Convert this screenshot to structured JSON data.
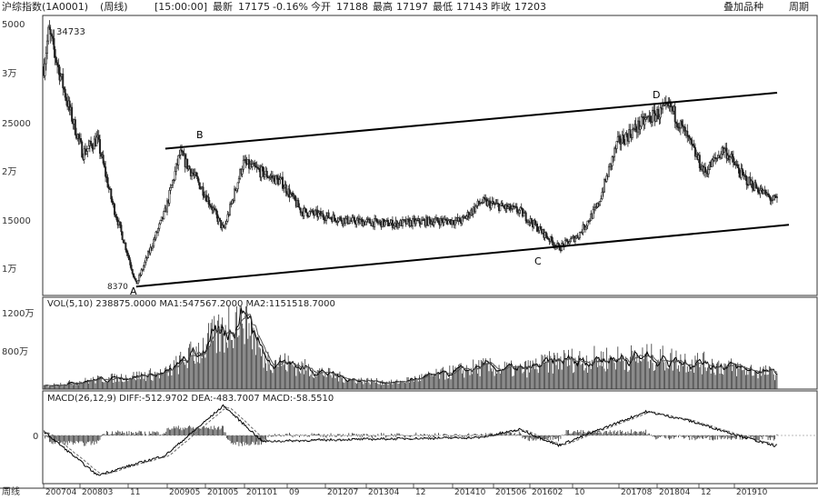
{
  "header": {
    "index_name": "沪综指数(1A0001)",
    "period": "(周线)",
    "time": "[15:00:00]",
    "latest_label": "最新",
    "latest": "17175",
    "change": "-0.16%",
    "open_label": "今开",
    "open": "17188",
    "high_label": "最高",
    "high": "17197",
    "low_label": "最低",
    "low": "17143",
    "close_label": "昨收",
    "close": "17203",
    "btn_overlay": "叠加品种",
    "btn_period": "周期"
  },
  "price_panel": {
    "y_ticks": [
      "5000",
      "3万",
      "25000",
      "2万",
      "15000",
      "1万"
    ],
    "peak_label": "34733",
    "trough_label": "8370",
    "points": [
      "A",
      "B",
      "C",
      "D"
    ]
  },
  "vol_panel": {
    "label": "VOL(5,10) 238875.0000 MA1:547567.2000 MA2:1151518.7000",
    "y_ticks": [
      "1200万",
      "800万"
    ]
  },
  "macd_panel": {
    "label": "MACD(26,12,9) DIFF:-512.9702 DEA:-483.7007 MACD:-58.5510",
    "y_ticks": [
      "0"
    ]
  },
  "x_axis": {
    "corner": "周线",
    "labels": [
      "200704",
      "200803",
      "11",
      "200905",
      "201005",
      "201101",
      "09",
      "201207",
      "201304",
      "12",
      "201410",
      "201506",
      "201602",
      "10",
      "201708",
      "201804",
      "12",
      "201910"
    ]
  },
  "chart_data": {
    "type": "candlestick",
    "title": "",
    "x_labels": [
      "200704",
      "200803",
      "11",
      "200905",
      "201005",
      "201101",
      "09",
      "201207",
      "201304",
      "12",
      "201410",
      "201506",
      "201602",
      "10",
      "201708",
      "201804",
      "12",
      "201910"
    ],
    "price_anchors": [
      {
        "x": "200704",
        "y": 31000
      },
      {
        "x": "200705",
        "y": 34733
      },
      {
        "x": "200709",
        "y": 27000
      },
      {
        "x": "200712",
        "y": 22000
      },
      {
        "x": "200803",
        "y": 23500
      },
      {
        "x": "200806",
        "y": 17000
      },
      {
        "x": "200809",
        "y": 12000
      },
      {
        "x": "200811",
        "y": 8370
      },
      {
        "x": "200905",
        "y": 16000
      },
      {
        "x": "200908",
        "y": 22000
      },
      {
        "x": "201001",
        "y": 18000
      },
      {
        "x": "201005",
        "y": 14000
      },
      {
        "x": "201009",
        "y": 21000
      },
      {
        "x": "201101",
        "y": 20000
      },
      {
        "x": "201105",
        "y": 19000
      },
      {
        "x": "201109",
        "y": 16000
      },
      {
        "x": "201207",
        "y": 15000
      },
      {
        "x": "201304",
        "y": 14700
      },
      {
        "x": "201312",
        "y": 15000
      },
      {
        "x": "201406",
        "y": 15000
      },
      {
        "x": "201410",
        "y": 17000
      },
      {
        "x": "201506",
        "y": 16000
      },
      {
        "x": "201602",
        "y": 12200
      },
      {
        "x": "201606",
        "y": 13500
      },
      {
        "x": "201610",
        "y": 16500
      },
      {
        "x": "201702",
        "y": 23000
      },
      {
        "x": "201708",
        "y": 25500
      },
      {
        "x": "201801",
        "y": 26800
      },
      {
        "x": "201804",
        "y": 24000
      },
      {
        "x": "201808",
        "y": 20000
      },
      {
        "x": "201812",
        "y": 22500
      },
      {
        "x": "201904",
        "y": 19500
      },
      {
        "x": "201910",
        "y": 17175
      }
    ],
    "volume_anchors": [
      {
        "x": "200704",
        "y": 50
      },
      {
        "x": "200803",
        "y": 150
      },
      {
        "x": "200905",
        "y": 250
      },
      {
        "x": "201005",
        "y": 900
      },
      {
        "x": "201009",
        "y": 1300
      },
      {
        "x": "201101",
        "y": 500
      },
      {
        "x": "201207",
        "y": 150
      },
      {
        "x": "201304",
        "y": 100
      },
      {
        "x": "201410",
        "y": 350
      },
      {
        "x": "201506",
        "y": 300
      },
      {
        "x": "201602",
        "y": 450
      },
      {
        "x": "201708",
        "y": 500
      },
      {
        "x": "201804",
        "y": 450
      },
      {
        "x": "201910",
        "y": 250
      }
    ],
    "macd_anchors": [
      {
        "x": "200704",
        "y": 200
      },
      {
        "x": "200803",
        "y": -2000
      },
      {
        "x": "200905",
        "y": -1000
      },
      {
        "x": "201005",
        "y": 1500
      },
      {
        "x": "201101",
        "y": -300
      },
      {
        "x": "201207",
        "y": -200
      },
      {
        "x": "201410",
        "y": -100
      },
      {
        "x": "201506",
        "y": 300
      },
      {
        "x": "201602",
        "y": -500
      },
      {
        "x": "201708",
        "y": 1200
      },
      {
        "x": "201804",
        "y": 800
      },
      {
        "x": "201910",
        "y": -500
      }
    ],
    "trend_upper": [
      {
        "x": "200905",
        "y": 22500
      },
      {
        "x": "201910",
        "y": 28300
      }
    ],
    "trend_lower": [
      {
        "x": "200811",
        "y": 8370
      },
      {
        "x": "201910",
        "y": 14600
      }
    ]
  }
}
